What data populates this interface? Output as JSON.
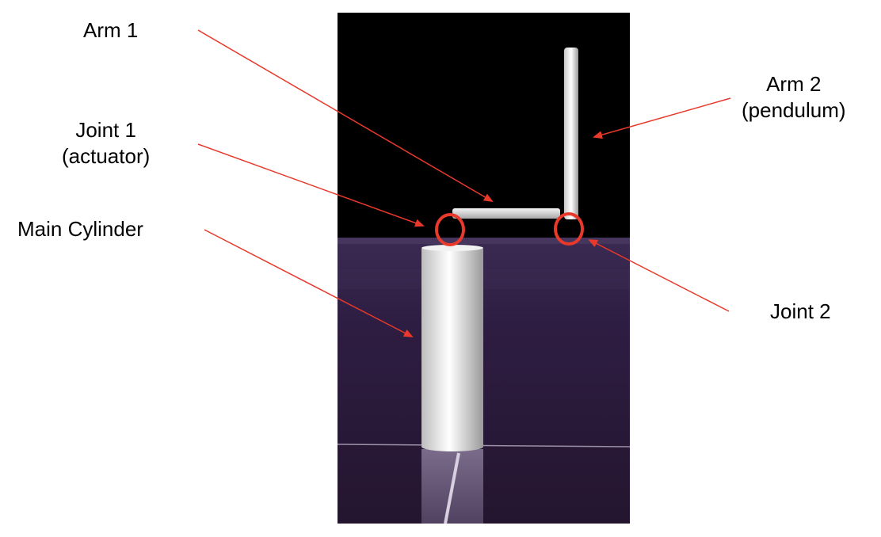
{
  "labels": {
    "arm1": "Arm 1",
    "joint1_line1": "Joint 1",
    "joint1_line2": "(actuator)",
    "main_cylinder": "Main Cylinder",
    "arm2_line1": "Arm 2",
    "arm2_line2": "(pendulum)",
    "joint2": "Joint 2"
  },
  "colors": {
    "sky": "#000000",
    "floor": "#2b1a3d",
    "annotation": "#e8392b",
    "text": "#000000",
    "body": "#e6e6e6"
  }
}
